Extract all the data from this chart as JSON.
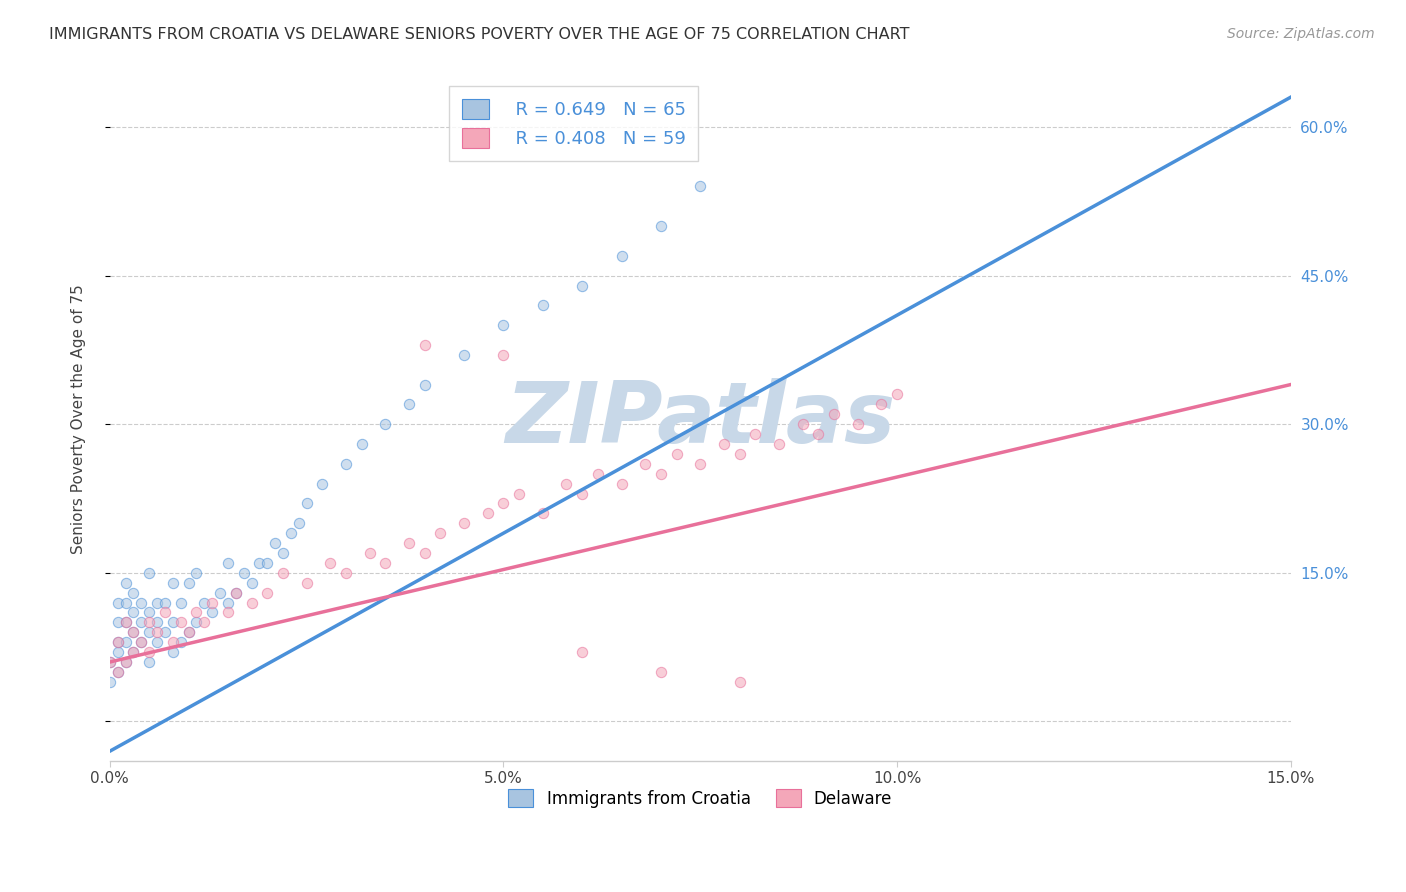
{
  "title": "IMMIGRANTS FROM CROATIA VS DELAWARE SENIORS POVERTY OVER THE AGE OF 75 CORRELATION CHART",
  "source": "Source: ZipAtlas.com",
  "ylabel": "Seniors Poverty Over the Age of 75",
  "legend_label1": "Immigrants from Croatia",
  "legend_label2": "Delaware",
  "R1": 0.649,
  "N1": 65,
  "R2": 0.408,
  "N2": 59,
  "color1": "#a8c4e0",
  "color2": "#f4a7b9",
  "line_color1": "#4a90d9",
  "line_color2": "#e8709a",
  "bg_color": "#ffffff",
  "watermark": "ZIPatlas",
  "watermark_color": "#c8d8e8",
  "xmin": 0.0,
  "xmax": 0.15,
  "ymin": -0.04,
  "ymax": 0.65,
  "yticks": [
    0.0,
    0.15,
    0.3,
    0.45,
    0.6
  ],
  "ytick_labels": [
    "",
    "15.0%",
    "30.0%",
    "45.0%",
    "60.0%"
  ],
  "xticks": [
    0.0,
    0.05,
    0.1,
    0.15
  ],
  "xtick_labels": [
    "0.0%",
    "5.0%",
    "10.0%",
    "15.0%"
  ],
  "scatter1_x": [
    0.0,
    0.0,
    0.001,
    0.001,
    0.001,
    0.001,
    0.001,
    0.002,
    0.002,
    0.002,
    0.002,
    0.002,
    0.003,
    0.003,
    0.003,
    0.003,
    0.004,
    0.004,
    0.004,
    0.005,
    0.005,
    0.005,
    0.005,
    0.006,
    0.006,
    0.006,
    0.007,
    0.007,
    0.008,
    0.008,
    0.008,
    0.009,
    0.009,
    0.01,
    0.01,
    0.011,
    0.011,
    0.012,
    0.013,
    0.014,
    0.015,
    0.015,
    0.016,
    0.017,
    0.018,
    0.019,
    0.02,
    0.021,
    0.022,
    0.023,
    0.024,
    0.025,
    0.027,
    0.03,
    0.032,
    0.035,
    0.038,
    0.04,
    0.045,
    0.05,
    0.055,
    0.06,
    0.065,
    0.07,
    0.075
  ],
  "scatter1_y": [
    0.04,
    0.06,
    0.05,
    0.07,
    0.08,
    0.1,
    0.12,
    0.06,
    0.08,
    0.1,
    0.12,
    0.14,
    0.07,
    0.09,
    0.11,
    0.13,
    0.08,
    0.1,
    0.12,
    0.06,
    0.09,
    0.11,
    0.15,
    0.08,
    0.1,
    0.12,
    0.09,
    0.12,
    0.07,
    0.1,
    0.14,
    0.08,
    0.12,
    0.09,
    0.14,
    0.1,
    0.15,
    0.12,
    0.11,
    0.13,
    0.12,
    0.16,
    0.13,
    0.15,
    0.14,
    0.16,
    0.16,
    0.18,
    0.17,
    0.19,
    0.2,
    0.22,
    0.24,
    0.26,
    0.28,
    0.3,
    0.32,
    0.34,
    0.37,
    0.4,
    0.42,
    0.44,
    0.47,
    0.5,
    0.54
  ],
  "scatter2_x": [
    0.0,
    0.001,
    0.001,
    0.002,
    0.002,
    0.003,
    0.003,
    0.004,
    0.005,
    0.005,
    0.006,
    0.007,
    0.008,
    0.009,
    0.01,
    0.011,
    0.012,
    0.013,
    0.015,
    0.016,
    0.018,
    0.02,
    0.022,
    0.025,
    0.028,
    0.03,
    0.033,
    0.035,
    0.038,
    0.04,
    0.042,
    0.045,
    0.048,
    0.05,
    0.052,
    0.055,
    0.058,
    0.06,
    0.062,
    0.065,
    0.068,
    0.07,
    0.072,
    0.075,
    0.078,
    0.08,
    0.082,
    0.085,
    0.088,
    0.09,
    0.092,
    0.095,
    0.098,
    0.1,
    0.05,
    0.04,
    0.06,
    0.07,
    0.08
  ],
  "scatter2_y": [
    0.06,
    0.05,
    0.08,
    0.06,
    0.1,
    0.07,
    0.09,
    0.08,
    0.07,
    0.1,
    0.09,
    0.11,
    0.08,
    0.1,
    0.09,
    0.11,
    0.1,
    0.12,
    0.11,
    0.13,
    0.12,
    0.13,
    0.15,
    0.14,
    0.16,
    0.15,
    0.17,
    0.16,
    0.18,
    0.17,
    0.19,
    0.2,
    0.21,
    0.22,
    0.23,
    0.21,
    0.24,
    0.23,
    0.25,
    0.24,
    0.26,
    0.25,
    0.27,
    0.26,
    0.28,
    0.27,
    0.29,
    0.28,
    0.3,
    0.29,
    0.31,
    0.3,
    0.32,
    0.33,
    0.37,
    0.38,
    0.07,
    0.05,
    0.04
  ],
  "trendline1_x": [
    0.0,
    0.15
  ],
  "trendline1_y": [
    -0.03,
    0.63
  ],
  "trendline2_x": [
    0.0,
    0.15
  ],
  "trendline2_y": [
    0.06,
    0.34
  ],
  "grid_color": "#cccccc",
  "dot_size": 55,
  "dot_alpha": 0.55
}
